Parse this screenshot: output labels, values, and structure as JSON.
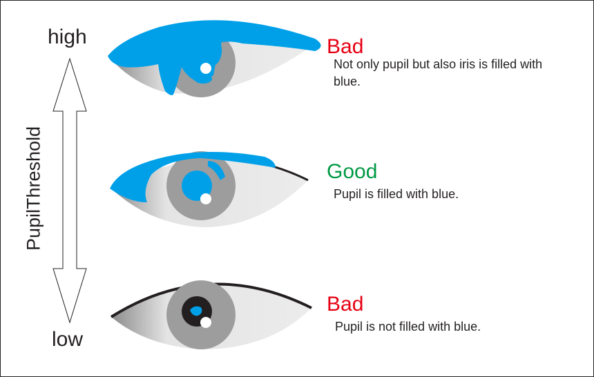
{
  "axis": {
    "title": "PupilThreshold",
    "high_label": "high",
    "low_label": "low"
  },
  "colors": {
    "fill_blue": "#00a0e9",
    "bad": "#e60012",
    "good": "#009944",
    "iris": "#9d9d9d",
    "sclera": "#e8e8e8",
    "lid": "#231f20"
  },
  "eyes": [
    {
      "status": "Bad",
      "description": "Not only pupil but also iris is filled with blue."
    },
    {
      "status": "Good",
      "description": "Pupil is filled with blue."
    },
    {
      "status": "Bad",
      "description": "Pupil is not filled with blue."
    }
  ]
}
